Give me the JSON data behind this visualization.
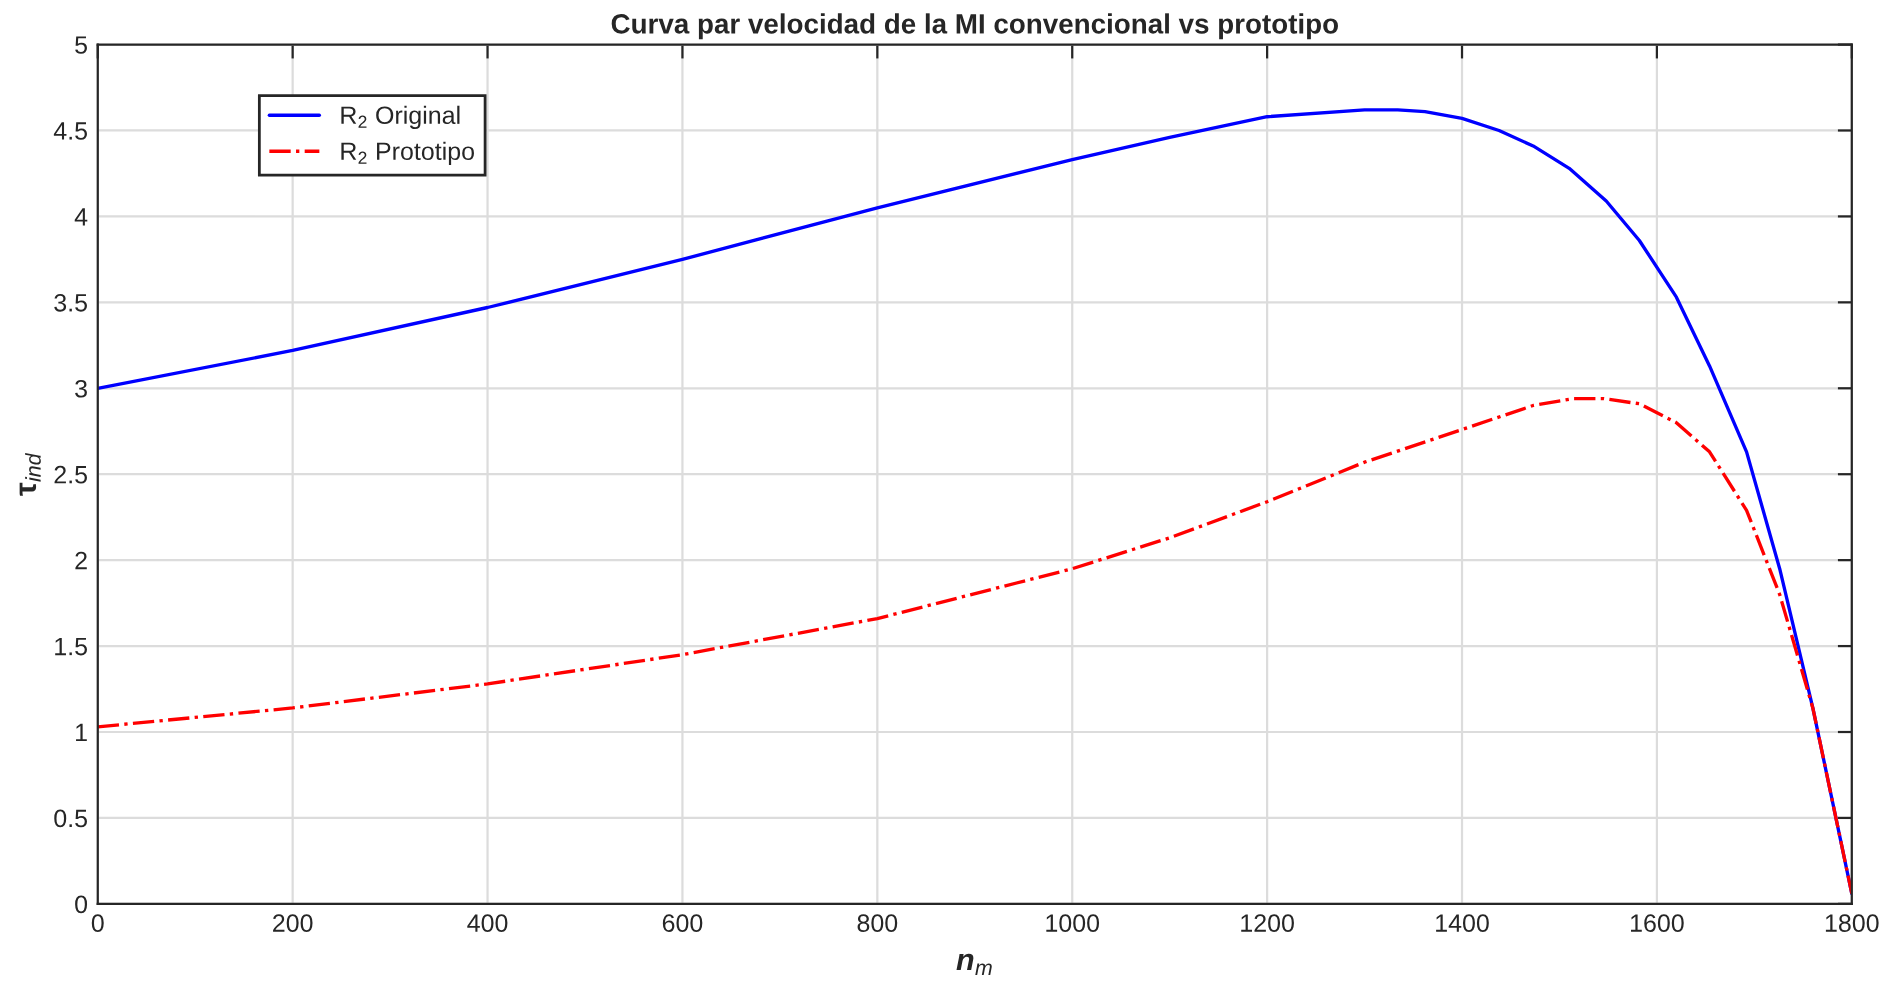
{
  "chart_data": {
    "type": "line",
    "title": "Curva par velocidad de la MI convencional vs prototipo",
    "xlabel": "n$_{m}$",
    "ylabel": "τ$_{ind}$",
    "series": [
      {
        "name": "R$_{2}$ Original",
        "color": "#0000ff",
        "line_style": "solid",
        "x": [
          0,
          200,
          400,
          600,
          800,
          1000,
          1100,
          1200,
          1300,
          1334,
          1362,
          1400,
          1438,
          1473,
          1510,
          1548,
          1582,
          1620,
          1654,
          1692,
          1726,
          1760,
          1800
        ],
        "values": [
          3.0,
          3.22,
          3.47,
          3.75,
          4.05,
          4.33,
          4.46,
          4.58,
          4.62,
          4.62,
          4.61,
          4.57,
          4.5,
          4.41,
          4.28,
          4.09,
          3.86,
          3.53,
          3.13,
          2.63,
          1.95,
          1.14,
          0.06
        ]
      },
      {
        "name": "R$_{2}$ Prototipo",
        "color": "#ff0000",
        "line_style": "dashdot",
        "x": [
          0,
          200,
          400,
          600,
          800,
          1000,
          1100,
          1200,
          1300,
          1400,
          1473,
          1514,
          1545,
          1582,
          1620,
          1654,
          1692,
          1726,
          1760,
          1800
        ],
        "values": [
          1.03,
          1.14,
          1.28,
          1.45,
          1.66,
          1.95,
          2.13,
          2.34,
          2.57,
          2.76,
          2.9,
          2.94,
          2.94,
          2.91,
          2.8,
          2.63,
          2.29,
          1.8,
          1.14,
          0.06
        ]
      }
    ],
    "xlim": [
      0,
      1800
    ],
    "xticks": [
      0,
      200,
      400,
      600,
      800,
      1000,
      1200,
      1400,
      1600,
      1800
    ],
    "ylim": [
      0,
      5
    ],
    "yticks": [
      0,
      0.5,
      1,
      1.5,
      2,
      2.5,
      3,
      3.5,
      4,
      4.5,
      5
    ],
    "grid": true,
    "legend": "top left",
    "marker": "none"
  }
}
